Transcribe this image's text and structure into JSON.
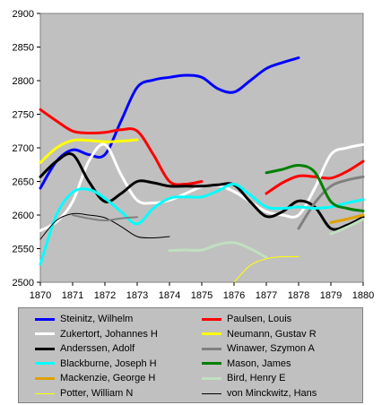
{
  "chart_data": {
    "type": "line",
    "title": "",
    "xlabel": "",
    "ylabel": "",
    "xlim": [
      1870,
      1880
    ],
    "ylim": [
      2500,
      2900
    ],
    "xticks": [
      "1870",
      "1871",
      "1872",
      "1873",
      "1874",
      "1875",
      "1876",
      "1877",
      "1878",
      "1879",
      "1880"
    ],
    "yticks": [
      "2500",
      "2550",
      "2600",
      "2650",
      "2700",
      "2750",
      "2800",
      "2850",
      "2900"
    ],
    "grid": false,
    "legend_position": "bottom",
    "series": [
      {
        "name": "Steinitz, Wilhelm",
        "color": "#0000ff",
        "width": 3,
        "x": [
          1870,
          1870.5,
          1871,
          1871.5,
          1872,
          1872.5,
          1873,
          1873.5,
          1874,
          1874.5,
          1875,
          1875.5,
          1876,
          1876.5,
          1877,
          1877.5,
          1878
        ],
        "y": [
          2640,
          2680,
          2697,
          2690,
          2690,
          2740,
          2790,
          2801,
          2805,
          2808,
          2805,
          2788,
          2783,
          2800,
          2818,
          2827,
          2834
        ]
      },
      {
        "name": "Paulsen, Louis",
        "color": "#ff0000",
        "width": 3,
        "x": [
          1870,
          1870.5,
          1871,
          1871.5,
          1872,
          1872.5,
          1873,
          1873.5,
          1874,
          1874.5,
          1875
        ],
        "y": [
          2757,
          2740,
          2725,
          2722,
          2723,
          2727,
          2725,
          2690,
          2650,
          2646,
          2650
        ]
      },
      {
        "name": "Paulsen, Louis",
        "color": "#ff0000",
        "width": 3,
        "x": [
          1877,
          1877.5,
          1878,
          1878.5,
          1879,
          1879.5,
          1880
        ],
        "y": [
          2632,
          2648,
          2658,
          2657,
          2655,
          2665,
          2680
        ]
      },
      {
        "name": "Zukertort, Johannes H",
        "color": "#ffffff",
        "width": 3,
        "x": [
          1870,
          1870.5,
          1871,
          1871.5,
          1872,
          1872.5,
          1873,
          1873.5,
          1874,
          1874.5,
          1875,
          1875.5,
          1876,
          1876.5,
          1877,
          1877.5,
          1878,
          1878.5,
          1879,
          1879.5,
          1880
        ],
        "y": [
          2577,
          2590,
          2620,
          2680,
          2705,
          2660,
          2622,
          2618,
          2622,
          2632,
          2642,
          2644,
          2635,
          2620,
          2605,
          2600,
          2600,
          2640,
          2690,
          2700,
          2705
        ]
      },
      {
        "name": "Neumann, Gustav R",
        "color": "#ffff00",
        "width": 3,
        "x": [
          1870,
          1870.5,
          1871,
          1871.5,
          1872,
          1872.5,
          1873
        ],
        "y": [
          2678,
          2700,
          2711,
          2711,
          2709,
          2710,
          2712
        ]
      },
      {
        "name": "Anderssen, Adolf",
        "color": "#000000",
        "width": 3,
        "x": [
          1870,
          1870.5,
          1871,
          1871.5,
          1872,
          1872.5,
          1873,
          1873.5,
          1874,
          1874.5,
          1875,
          1875.5,
          1876,
          1876.5,
          1877,
          1877.5,
          1878,
          1878.5,
          1879,
          1879.5,
          1880
        ],
        "y": [
          2657,
          2680,
          2690,
          2650,
          2620,
          2632,
          2650,
          2648,
          2643,
          2643,
          2643,
          2645,
          2645,
          2620,
          2598,
          2605,
          2621,
          2612,
          2580,
          2585,
          2597
        ]
      },
      {
        "name": "Winawer, Szymon A",
        "color": "#808080",
        "width": 3,
        "x": [
          1878,
          1878.5,
          1879,
          1879.5,
          1880
        ],
        "y": [
          2580,
          2618,
          2643,
          2652,
          2657
        ]
      },
      {
        "name": "Blackburne, Joseph H",
        "color": "#00ffff",
        "width": 3,
        "x": [
          1870,
          1870.5,
          1871,
          1871.5,
          1872,
          1872.5,
          1873,
          1873.5,
          1874,
          1874.5,
          1875,
          1875.5,
          1876,
          1876.5,
          1877,
          1877.5,
          1878,
          1878.5,
          1879,
          1879.5,
          1880
        ],
        "y": [
          2527,
          2600,
          2634,
          2638,
          2625,
          2605,
          2587,
          2610,
          2625,
          2627,
          2627,
          2636,
          2646,
          2630,
          2612,
          2610,
          2612,
          2610,
          2612,
          2618,
          2623
        ]
      },
      {
        "name": "Mason, James",
        "color": "#008000",
        "width": 3,
        "x": [
          1877,
          1877.5,
          1878,
          1878.5,
          1879,
          1879.5,
          1880
        ],
        "y": [
          2663,
          2668,
          2674,
          2664,
          2620,
          2610,
          2606
        ]
      },
      {
        "name": "Mackenzie, George H",
        "color": "#e0a000",
        "width": 3,
        "x": [
          1879,
          1879.5,
          1880
        ],
        "y": [
          2589,
          2594,
          2600
        ]
      },
      {
        "name": "Bird, Henry E",
        "color": "#c0e0c0",
        "width": 3,
        "x": [
          1874,
          1874.5,
          1875,
          1875.5,
          1876,
          1876.5,
          1877
        ],
        "y": [
          2547,
          2548,
          2548,
          2556,
          2559,
          2550,
          2537
        ]
      },
      {
        "name": "Bird, Henry E",
        "color": "#c0e0c0",
        "width": 3,
        "x": [
          1879,
          1879.5,
          1880
        ],
        "y": [
          2572,
          2582,
          2594
        ]
      },
      {
        "name": "Potter, William N",
        "color": "#ffff00",
        "width": 1,
        "x": [
          1876,
          1876.5,
          1877,
          1877.5,
          1878
        ],
        "y": [
          2500,
          2525,
          2535,
          2538,
          2538
        ]
      },
      {
        "name": "von Minckwitz, Hans",
        "color": "#000000",
        "width": 1,
        "x": [
          1870,
          1870.5,
          1871,
          1871.5,
          1872,
          1872.5,
          1873,
          1873.5,
          1874
        ],
        "y": [
          2564,
          2592,
          2602,
          2600,
          2596,
          2583,
          2568,
          2566,
          2568
        ]
      },
      {
        "name": "von Minckwitz, Hans",
        "color": "#808080",
        "width": 2,
        "x": [
          1871,
          1871.5,
          1872,
          1872.5,
          1873
        ],
        "y": [
          2600,
          2595,
          2592,
          2595,
          2597
        ]
      }
    ],
    "legend": [
      {
        "label": "Steinitz, Wilhelm",
        "color": "#0000ff",
        "width": 3
      },
      {
        "label": "Paulsen, Louis",
        "color": "#ff0000",
        "width": 3
      },
      {
        "label": "Zukertort, Johannes H",
        "color": "#ffffff",
        "width": 3
      },
      {
        "label": "Neumann, Gustav R",
        "color": "#ffff00",
        "width": 3
      },
      {
        "label": "Anderssen, Adolf",
        "color": "#000000",
        "width": 3
      },
      {
        "label": "Winawer, Szymon A",
        "color": "#808080",
        "width": 3
      },
      {
        "label": "Blackburne, Joseph H",
        "color": "#00ffff",
        "width": 3
      },
      {
        "label": "Mason, James",
        "color": "#008000",
        "width": 3
      },
      {
        "label": "Mackenzie, George H",
        "color": "#e0a000",
        "width": 3
      },
      {
        "label": "Bird, Henry E",
        "color": "#c0e0c0",
        "width": 3
      },
      {
        "label": "Potter, William N",
        "color": "#ffff00",
        "width": 1
      },
      {
        "label": "von Minckwitz, Hans",
        "color": "#000000",
        "width": 1
      }
    ]
  }
}
